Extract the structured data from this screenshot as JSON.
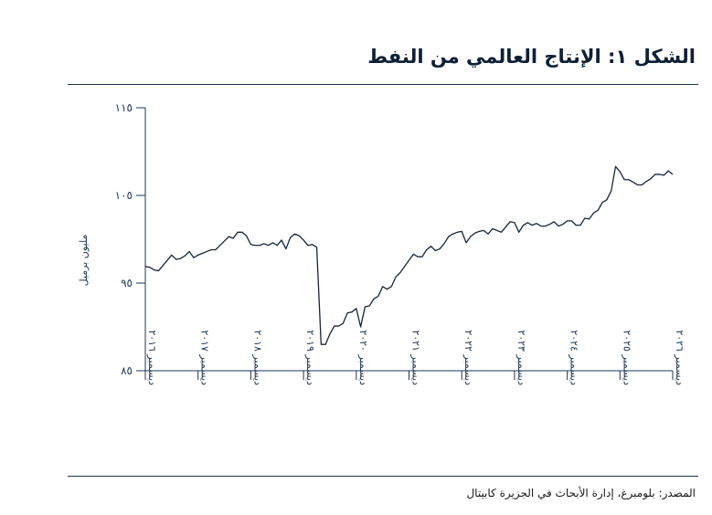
{
  "title": "الشكل ١: الإنتاج العالمي من النفط",
  "source": "المصدر: بلومبرغ، إدارة الأبحاث في الجزيرة كابيتال",
  "colors": {
    "line": "#16263a",
    "axis": "#1e3550"
  },
  "chart_data": {
    "type": "line",
    "title": "الشكل ١: الإنتاج العالمي من النفط",
    "xlabel": "",
    "ylabel": "مليون برميل",
    "ylim": [
      85,
      115
    ],
    "yticks": [
      85,
      95,
      105,
      115
    ],
    "ytick_labels": [
      "٨٥",
      "٩٥",
      "١٠٥",
      "١١٥"
    ],
    "xticks": [
      {
        "x": 0,
        "label": "ديسمبر ٢٠١٦"
      },
      {
        "x": 12,
        "label": "ديسمبر ٢٠١٧"
      },
      {
        "x": 24,
        "label": "ديسمبر ٢٠١٨"
      },
      {
        "x": 36,
        "label": "ديسمبر ٢٠١٩"
      },
      {
        "x": 48,
        "label": "ديسمبر ٢٠٢٠"
      },
      {
        "x": 60,
        "label": "ديسمبر ٢٠٢١"
      },
      {
        "x": 72,
        "label": "ديسمبر ٢٠٢٢"
      },
      {
        "x": 84,
        "label": "ديسمبر ٢٠٢٣"
      },
      {
        "x": 96,
        "label": "ديسمبر ٢٠٢٤"
      },
      {
        "x": 108,
        "label": "ديسمبر ٢٠٢٥"
      },
      {
        "x": 120,
        "label": "ديسمبر ٢٠٢٦"
      }
    ],
    "grid": false,
    "series": [
      {
        "values": [
          96.9,
          96.8,
          96.5,
          96.4,
          97.0,
          97.6,
          98.2,
          97.7,
          97.8,
          98.1,
          98.6,
          97.9,
          98.2,
          98.4,
          98.6,
          98.8,
          98.8,
          99.3,
          99.8,
          100.3,
          100.1,
          100.8,
          100.8,
          100.4,
          99.4,
          99.3,
          99.3,
          99.5,
          99.3,
          99.6,
          99.3,
          99.9,
          98.9,
          100.2,
          100.6,
          100.4,
          99.9,
          99.3,
          99.4,
          99.1,
          88.0,
          88.0,
          89.2,
          90.1,
          90.1,
          90.4,
          91.6,
          91.7,
          92.1,
          90.0,
          92.3,
          92.4,
          93.2,
          93.5,
          94.6,
          94.3,
          94.6,
          95.7,
          96.2,
          96.9,
          97.6,
          98.3,
          98.0,
          98.0,
          98.8,
          99.2,
          98.7,
          98.9,
          99.5,
          100.3,
          100.6,
          100.8,
          100.9,
          99.6,
          100.3,
          100.7,
          100.9,
          101.0,
          100.6,
          101.2,
          101.0,
          100.8,
          101.4,
          102.0,
          101.9,
          100.8,
          101.6,
          101.9,
          101.6,
          101.8,
          101.5,
          101.5,
          101.7,
          102.0,
          101.5,
          101.7,
          102.1,
          102.1,
          101.6,
          101.6,
          102.4,
          102.3,
          103.0,
          103.3,
          104.2,
          104.5,
          105.5,
          108.3,
          107.7,
          106.8,
          106.8,
          106.5,
          106.2,
          106.2,
          106.6,
          106.9,
          107.4,
          107.4,
          107.3,
          107.8,
          107.4
        ]
      }
    ]
  }
}
